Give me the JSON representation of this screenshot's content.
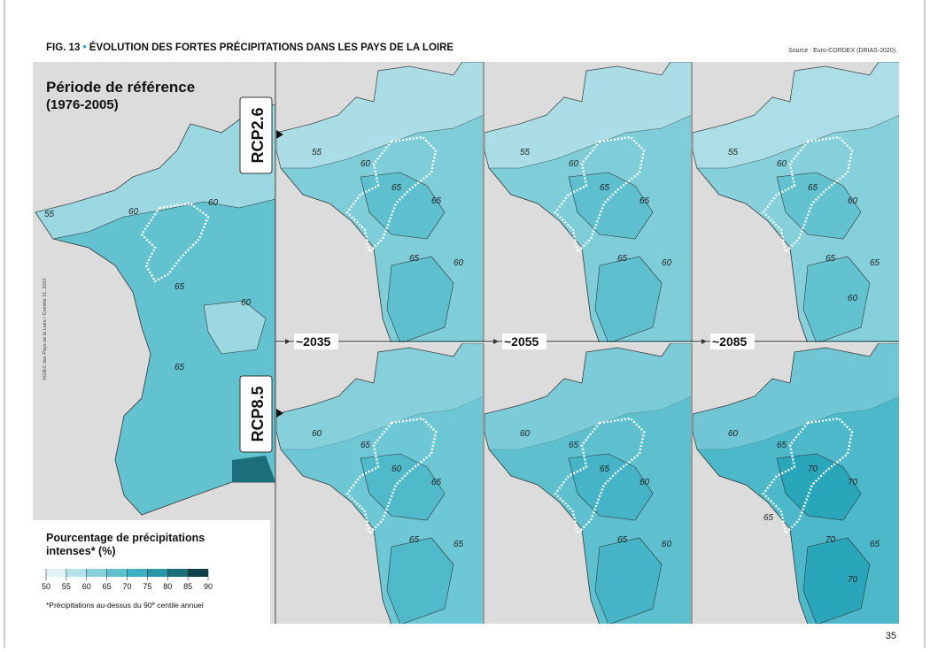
{
  "header": {
    "figure": "FIG. 13",
    "bullet": "•",
    "title": "ÉVOLUTION DES FORTES PRÉCIPITATIONS DANS LES PAYS DE LA LOIRE",
    "source": "Source : Euro-CORDEX (DRIAS-2020)."
  },
  "reference": {
    "title": "Période de référence",
    "period": "(1976-2005)",
    "contour_labels": [
      55,
      60,
      60,
      65,
      60,
      65
    ]
  },
  "horizons": [
    "~2035",
    "~2055",
    "~2085"
  ],
  "scenarios": [
    {
      "name": "RCP2.6",
      "panels": [
        {
          "contour_labels": [
            55,
            60,
            65,
            65,
            65,
            60
          ],
          "base_color": "#7fcdd9",
          "zone_color": "#5ec0cf"
        },
        {
          "contour_labels": [
            55,
            60,
            65,
            65,
            65,
            60
          ],
          "base_color": "#7fcdd9",
          "zone_color": "#5ec0cf"
        },
        {
          "contour_labels": [
            55,
            60,
            65,
            60,
            65,
            65,
            60
          ],
          "base_color": "#86d0dc",
          "zone_color": "#62c2d0"
        }
      ]
    },
    {
      "name": "RCP8.5",
      "panels": [
        {
          "contour_labels": [
            60,
            65,
            60,
            65,
            65,
            65
          ],
          "base_color": "#6ec7d5",
          "zone_color": "#50bacb"
        },
        {
          "contour_labels": [
            60,
            65,
            65,
            60,
            65,
            60
          ],
          "base_color": "#5ec0cf",
          "zone_color": "#45b4c6"
        },
        {
          "contour_labels": [
            60,
            65,
            70,
            70,
            70,
            65,
            70,
            65
          ],
          "base_color": "#4cb8c9",
          "zone_color": "#2aa6ba"
        }
      ]
    }
  ],
  "legend": {
    "title": [
      "Pourcentage de précipitations",
      "intenses* (%)"
    ],
    "ticks": [
      50,
      55,
      60,
      65,
      70,
      75,
      80,
      85,
      90
    ],
    "colors": [
      "#e0f3f6",
      "#b5e2ea",
      "#86d0dc",
      "#5ec0cf",
      "#3cb0c2",
      "#2a97a8",
      "#1c6e7b",
      "#0f3f48"
    ],
    "footnote_before": "*Précipitations au-dessus du 90",
    "footnote_sup": "e",
    "footnote_after": " centile annuel"
  },
  "credit": "©GIEC des Pays de la Loire / Comète 21, 2022",
  "page_number": "35"
}
